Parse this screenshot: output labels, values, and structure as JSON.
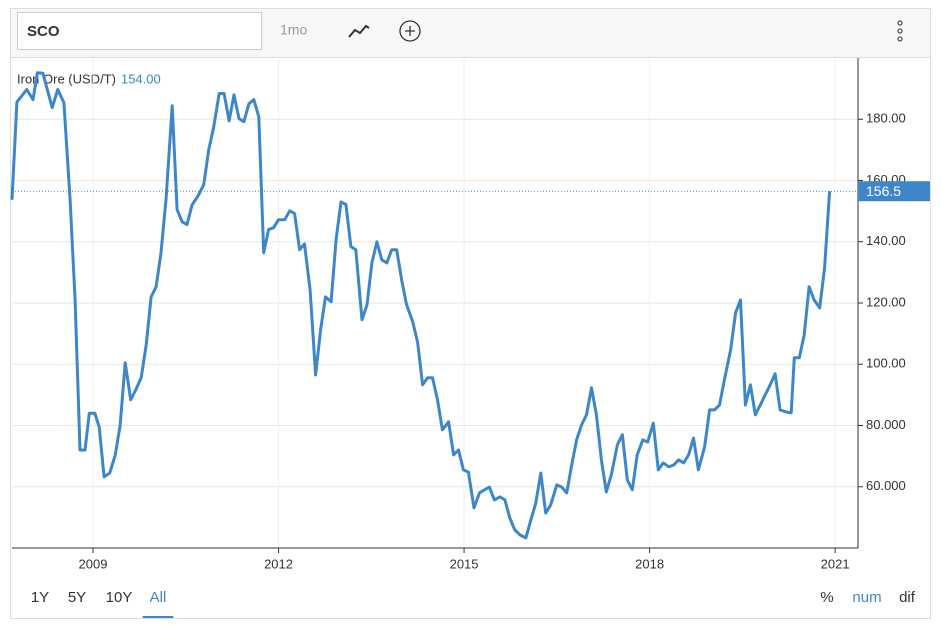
{
  "toolbar": {
    "symbol": "SCO",
    "interval": "1mo"
  },
  "chart_data": {
    "type": "line",
    "series": [
      {
        "name": "Iron Ore (USD/T)",
        "color": "#3d87c8",
        "values": [
          153.7,
          185.6,
          189.7,
          186.4,
          195.2,
          195,
          183.8,
          189.7,
          185.4,
          153.7,
          121,
          72,
          72,
          84,
          84,
          79.5,
          63.2,
          64.5,
          70.4,
          80.2,
          100.5,
          88.4,
          91.6,
          95.6,
          106.3,
          122,
          125.3,
          136.4,
          153.7,
          184.4,
          150.5,
          146.5,
          145.6,
          152,
          155,
          158.6,
          170,
          177.3,
          188.4,
          188.4,
          179.5,
          188,
          180.2,
          179.2,
          185,
          186.4,
          180.8,
          136.4,
          144,
          144.6,
          147.2,
          147.2,
          150.1,
          149.2,
          137.4,
          139.3,
          124.3,
          96.5,
          111.2,
          122,
          120.4,
          140.7,
          153,
          152.2,
          138.4,
          137.4,
          114.5,
          119.4,
          133.1,
          140,
          134.1,
          133.1,
          137.4,
          137.4,
          127.6,
          119.4,
          113.9,
          107,
          93.3,
          95.6,
          95.6,
          88.4,
          78.6,
          81.2,
          70.4,
          72,
          65.5,
          64.8,
          53.1,
          58,
          59,
          59.9,
          55.7,
          56.7,
          55.7,
          49.8,
          45.9,
          44.2,
          43.3,
          49.2,
          54.7,
          64.5,
          51.4,
          54,
          60.6,
          59.9,
          58,
          67.1,
          75.3,
          80.2,
          83.5,
          92.3,
          83.5,
          68.8,
          58.3,
          63.9,
          73.7,
          77,
          62.2,
          59,
          70.4,
          75.3,
          74.6,
          80.8,
          65.5,
          67.8,
          66.5,
          67.1,
          68.8,
          67.8,
          70.4,
          75.9,
          65.5,
          73,
          85.1,
          85.1,
          86.7,
          94.9,
          104.7,
          116.8,
          121,
          86.7,
          93.3,
          83.5,
          86.7,
          90,
          93.3,
          96.9,
          85.1,
          84.4,
          84.1,
          102.1,
          102.1,
          109.6,
          125.3,
          121,
          118.4,
          131.5,
          156.5
        ]
      }
    ],
    "x": [
      2007.69,
      2007.77,
      2007.93,
      2008.03,
      2008.1,
      2008.19,
      2008.34,
      2008.43,
      2008.53,
      2008.63,
      2008.71,
      2008.79,
      2008.87,
      2008.94,
      2009.03,
      2009.1,
      2009.18,
      2009.27,
      2009.36,
      2009.44,
      2009.52,
      2009.61,
      2009.69,
      2009.78,
      2009.86,
      2009.94,
      2010.02,
      2010.1,
      2010.18,
      2010.28,
      2010.36,
      2010.44,
      2010.52,
      2010.6,
      2010.7,
      2010.79,
      2010.87,
      2010.95,
      2011.04,
      2011.12,
      2011.2,
      2011.28,
      2011.36,
      2011.44,
      2011.52,
      2011.6,
      2011.68,
      2011.76,
      2011.84,
      2011.92,
      2012.0,
      2012.1,
      2012.18,
      2012.26,
      2012.34,
      2012.42,
      2012.51,
      2012.6,
      2012.68,
      2012.76,
      2012.85,
      2012.93,
      2013.01,
      2013.09,
      2013.17,
      2013.25,
      2013.35,
      2013.43,
      2013.51,
      2013.59,
      2013.67,
      2013.75,
      2013.83,
      2013.91,
      2013.99,
      2014.07,
      2014.17,
      2014.25,
      2014.33,
      2014.41,
      2014.49,
      2014.57,
      2014.65,
      2014.75,
      2014.83,
      2014.91,
      2014.99,
      2015.07,
      2015.16,
      2015.25,
      2015.33,
      2015.41,
      2015.49,
      2015.58,
      2015.66,
      2015.74,
      2015.82,
      2015.91,
      2016.0,
      2016.08,
      2016.16,
      2016.24,
      2016.32,
      2016.4,
      2016.5,
      2016.58,
      2016.66,
      2016.74,
      2016.82,
      2016.9,
      2016.98,
      2017.06,
      2017.14,
      2017.22,
      2017.3,
      2017.38,
      2017.48,
      2017.56,
      2017.64,
      2017.72,
      2017.8,
      2017.89,
      2017.97,
      2018.06,
      2018.14,
      2018.22,
      2018.31,
      2018.39,
      2018.47,
      2018.55,
      2018.63,
      2018.71,
      2018.79,
      2018.89,
      2018.97,
      2019.05,
      2019.13,
      2019.21,
      2019.31,
      2019.39,
      2019.47,
      2019.55,
      2019.63,
      2019.71,
      2019.79,
      2019.87,
      2019.95,
      2020.03,
      2020.11,
      2020.21,
      2020.29,
      2020.34,
      2020.42,
      2020.5,
      2020.58,
      2020.66,
      2020.75,
      2020.83,
      2020.91
    ],
    "xlim": [
      2007.69,
      2021.37
    ],
    "xticks": [
      2009,
      2012,
      2015,
      2018,
      2021
    ],
    "ylim": [
      40,
      200
    ],
    "yticks": [
      {
        "value": 60,
        "label": "60.000"
      },
      {
        "value": 80,
        "label": "80.000"
      },
      {
        "value": 100,
        "label": "100.00"
      },
      {
        "value": 120,
        "label": "120.00"
      },
      {
        "value": 140,
        "label": "140.00"
      },
      {
        "value": 160,
        "label": "160.00"
      },
      {
        "value": 180,
        "label": "180.00"
      }
    ],
    "grid": true,
    "legend_value": {
      "value": 154,
      "label": "154.00"
    },
    "current_value": 156.5
  },
  "range_buttons": [
    "1Y",
    "5Y",
    "10Y",
    "All"
  ],
  "active_range": 3,
  "mode_buttons": [
    "%",
    "num",
    "dif"
  ],
  "active_mode": 1
}
